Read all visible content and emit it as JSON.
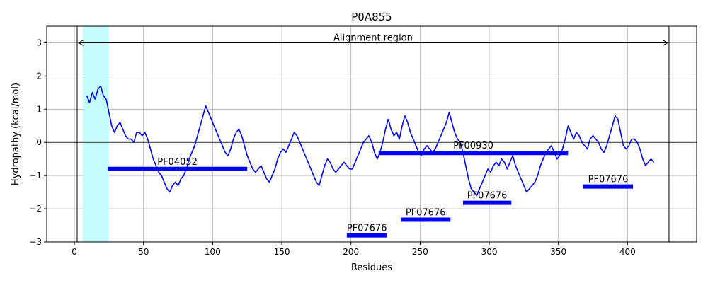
{
  "chart_data": {
    "type": "line",
    "title": "P0A855",
    "xlabel": "Residues",
    "ylabel": "Hydropathy (kcal/mol)",
    "xlim": [
      -20,
      450
    ],
    "ylim": [
      -3,
      3.5
    ],
    "xticks": [
      0,
      50,
      100,
      150,
      200,
      250,
      300,
      350,
      400
    ],
    "yticks": [
      -3,
      -2,
      -1,
      0,
      1,
      2,
      3
    ],
    "grid": true,
    "colors": {
      "line": "#0000ff",
      "highlight": "#c4fcfc",
      "domains": "#0000ff",
      "axes": "#000000",
      "grid": "#b0b0b0"
    },
    "highlight_region": {
      "x0": 6,
      "x1": 25
    },
    "alignment_region": {
      "label": "Alignment region",
      "start": 2,
      "end": 430,
      "y": 3
    },
    "domains": [
      {
        "name": "PF04052",
        "start": 24,
        "end": 125,
        "y": -0.8
      },
      {
        "name": "PF00930",
        "start": 220,
        "end": 357,
        "y": -0.32
      },
      {
        "name": "PF07676",
        "start": 281,
        "end": 316,
        "y": -1.82
      },
      {
        "name": "PF07676",
        "start": 236,
        "end": 272,
        "y": -2.33
      },
      {
        "name": "PF07676",
        "start": 197,
        "end": 226,
        "y": -2.8
      },
      {
        "name": "PF07676",
        "start": 368,
        "end": 404,
        "y": -1.33
      }
    ],
    "series": [
      {
        "x": [
          9,
          11,
          13,
          15,
          17,
          19,
          21,
          23,
          25,
          27,
          29,
          31,
          33,
          35,
          37,
          39,
          41,
          43,
          45,
          47,
          49,
          51,
          53,
          55,
          57,
          59,
          61,
          63,
          65,
          67,
          69,
          71,
          73,
          75,
          77,
          79,
          81,
          83,
          85,
          87,
          89,
          91,
          93,
          95,
          97,
          99,
          101,
          103,
          105,
          107,
          109,
          111,
          113,
          115,
          117,
          119,
          121,
          123,
          125,
          127,
          129,
          131,
          133,
          135,
          137,
          139,
          141,
          143,
          145,
          147,
          149,
          151,
          153,
          155,
          157,
          159,
          161,
          163,
          165,
          167,
          169,
          171,
          173,
          175,
          177,
          179,
          181,
          183,
          185,
          187,
          189,
          191,
          193,
          195,
          197,
          199,
          201,
          203,
          205,
          207,
          209,
          211,
          213,
          215,
          217,
          219,
          221,
          223,
          225,
          227,
          229,
          231,
          233,
          235,
          237,
          239,
          241,
          243,
          245,
          247,
          249,
          251,
          253,
          255,
          257,
          259,
          261,
          263,
          265,
          267,
          269,
          271,
          273,
          275,
          277,
          279,
          281,
          283,
          285,
          287,
          289,
          291,
          293,
          295,
          297,
          299,
          301,
          303,
          305,
          307,
          309,
          311,
          313,
          315,
          317,
          319,
          321,
          323,
          325,
          327,
          329,
          331,
          333,
          335,
          337,
          339,
          341,
          343,
          345,
          347,
          349,
          351,
          353,
          355,
          357,
          359,
          361,
          363,
          365,
          367,
          369,
          371,
          373,
          375,
          377,
          379,
          381,
          383,
          385,
          387,
          389,
          391,
          393,
          395,
          397,
          399,
          401,
          403,
          405,
          407,
          409,
          411,
          413,
          415,
          417,
          419
        ],
        "y": [
          1.4,
          1.2,
          1.5,
          1.3,
          1.6,
          1.7,
          1.4,
          1.3,
          0.9,
          0.5,
          0.3,
          0.5,
          0.6,
          0.4,
          0.2,
          0.1,
          0.1,
          0.0,
          0.3,
          0.3,
          0.2,
          0.3,
          0.1,
          -0.2,
          -0.5,
          -0.7,
          -0.9,
          -1.0,
          -1.2,
          -1.4,
          -1.5,
          -1.3,
          -1.2,
          -1.3,
          -1.1,
          -1.0,
          -0.8,
          -0.5,
          -0.3,
          -0.1,
          0.2,
          0.5,
          0.8,
          1.1,
          0.9,
          0.7,
          0.5,
          0.3,
          0.1,
          -0.1,
          -0.3,
          -0.4,
          -0.2,
          0.1,
          0.3,
          0.4,
          0.2,
          -0.1,
          -0.4,
          -0.6,
          -0.8,
          -0.9,
          -0.8,
          -0.7,
          -0.9,
          -1.1,
          -1.2,
          -1.0,
          -0.8,
          -0.5,
          -0.3,
          -0.2,
          -0.3,
          -0.1,
          0.1,
          0.3,
          0.2,
          0.0,
          -0.2,
          -0.4,
          -0.6,
          -0.8,
          -1.0,
          -1.2,
          -1.3,
          -1.0,
          -0.7,
          -0.5,
          -0.6,
          -0.8,
          -0.9,
          -0.8,
          -0.7,
          -0.6,
          -0.7,
          -0.8,
          -0.8,
          -0.6,
          -0.4,
          -0.2,
          0.0,
          0.1,
          0.2,
          0.0,
          -0.3,
          -0.5,
          -0.3,
          0.0,
          0.4,
          0.7,
          0.4,
          0.2,
          0.3,
          0.1,
          0.5,
          0.8,
          0.6,
          0.3,
          0.1,
          -0.1,
          -0.3,
          -0.4,
          -0.2,
          -0.1,
          -0.2,
          -0.3,
          -0.2,
          0.0,
          0.2,
          0.4,
          0.6,
          0.9,
          0.6,
          0.3,
          0.1,
          0.0,
          -0.3,
          -0.7,
          -1.1,
          -1.4,
          -1.5,
          -1.6,
          -1.4,
          -1.2,
          -1.0,
          -0.8,
          -0.9,
          -0.7,
          -0.6,
          -0.7,
          -0.5,
          -0.6,
          -0.8,
          -0.6,
          -0.4,
          -0.7,
          -0.9,
          -1.1,
          -1.3,
          -1.5,
          -1.4,
          -1.3,
          -1.2,
          -1.0,
          -0.7,
          -0.5,
          -0.3,
          -0.2,
          -0.1,
          -0.3,
          -0.5,
          -0.4,
          -0.2,
          0.1,
          0.5,
          0.3,
          0.1,
          0.3,
          0.2,
          0.0,
          -0.1,
          -0.2,
          0.1,
          0.2,
          0.1,
          0.0,
          -0.2,
          -0.3,
          -0.1,
          0.2,
          0.5,
          0.8,
          0.7,
          0.3,
          -0.1,
          -0.2,
          -0.1,
          0.1,
          0.1,
          0.0,
          -0.2,
          -0.5,
          -0.7,
          -0.6,
          -0.5,
          -0.6
        ]
      }
    ]
  }
}
